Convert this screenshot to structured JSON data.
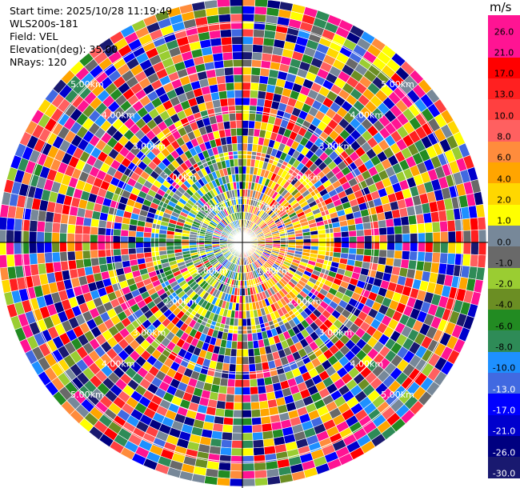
{
  "header": {
    "start_time": "Start time: 2025/10/28 11:19:49",
    "instrument": "WLS200s-181",
    "field": "Field: VEL",
    "elevation": "Elevation(deg): 35.00",
    "nrays": "NRays: 120"
  },
  "colorbar": {
    "unit": "m/s",
    "ticks": [
      "26.0",
      "21.0",
      "17.0",
      "13.0",
      "10.0",
      "8.0",
      "6.0",
      "4.0",
      "2.0",
      "1.0",
      "0.0",
      "-1.0",
      "-2.0",
      "-4.0",
      "-6.0",
      "-8.0",
      "-10.0",
      "-13.0",
      "-17.0",
      "-21.0",
      "-26.0",
      "-30.0"
    ],
    "colors": [
      "#ff1493",
      "#ff1493",
      "#ff0000",
      "#ff2020",
      "#ff4040",
      "#ff6060",
      "#ff8c3c",
      "#ffa500",
      "#ffd700",
      "#ffff00",
      "#778899",
      "#696969",
      "#9acd32",
      "#6b8e23",
      "#228b22",
      "#2e8b57",
      "#1e90ff",
      "#4169e1",
      "#0000ff",
      "#0000cd",
      "#000080",
      "#191970"
    ]
  },
  "chart_data": {
    "type": "heatmap",
    "projection": "polar PPI",
    "field": "VEL",
    "nrays": 120,
    "range_rings": [
      {
        "label": "1.00km",
        "value_km": 1.0
      },
      {
        "label": "2.00km",
        "value_km": 2.0
      },
      {
        "label": "3.00km",
        "value_km": 3.0
      },
      {
        "label": "4.00km",
        "value_km": 4.0
      },
      {
        "label": "5.00km",
        "value_km": 5.0
      }
    ],
    "value_range": [
      -30.0,
      26.0
    ],
    "unit": "m/s"
  }
}
